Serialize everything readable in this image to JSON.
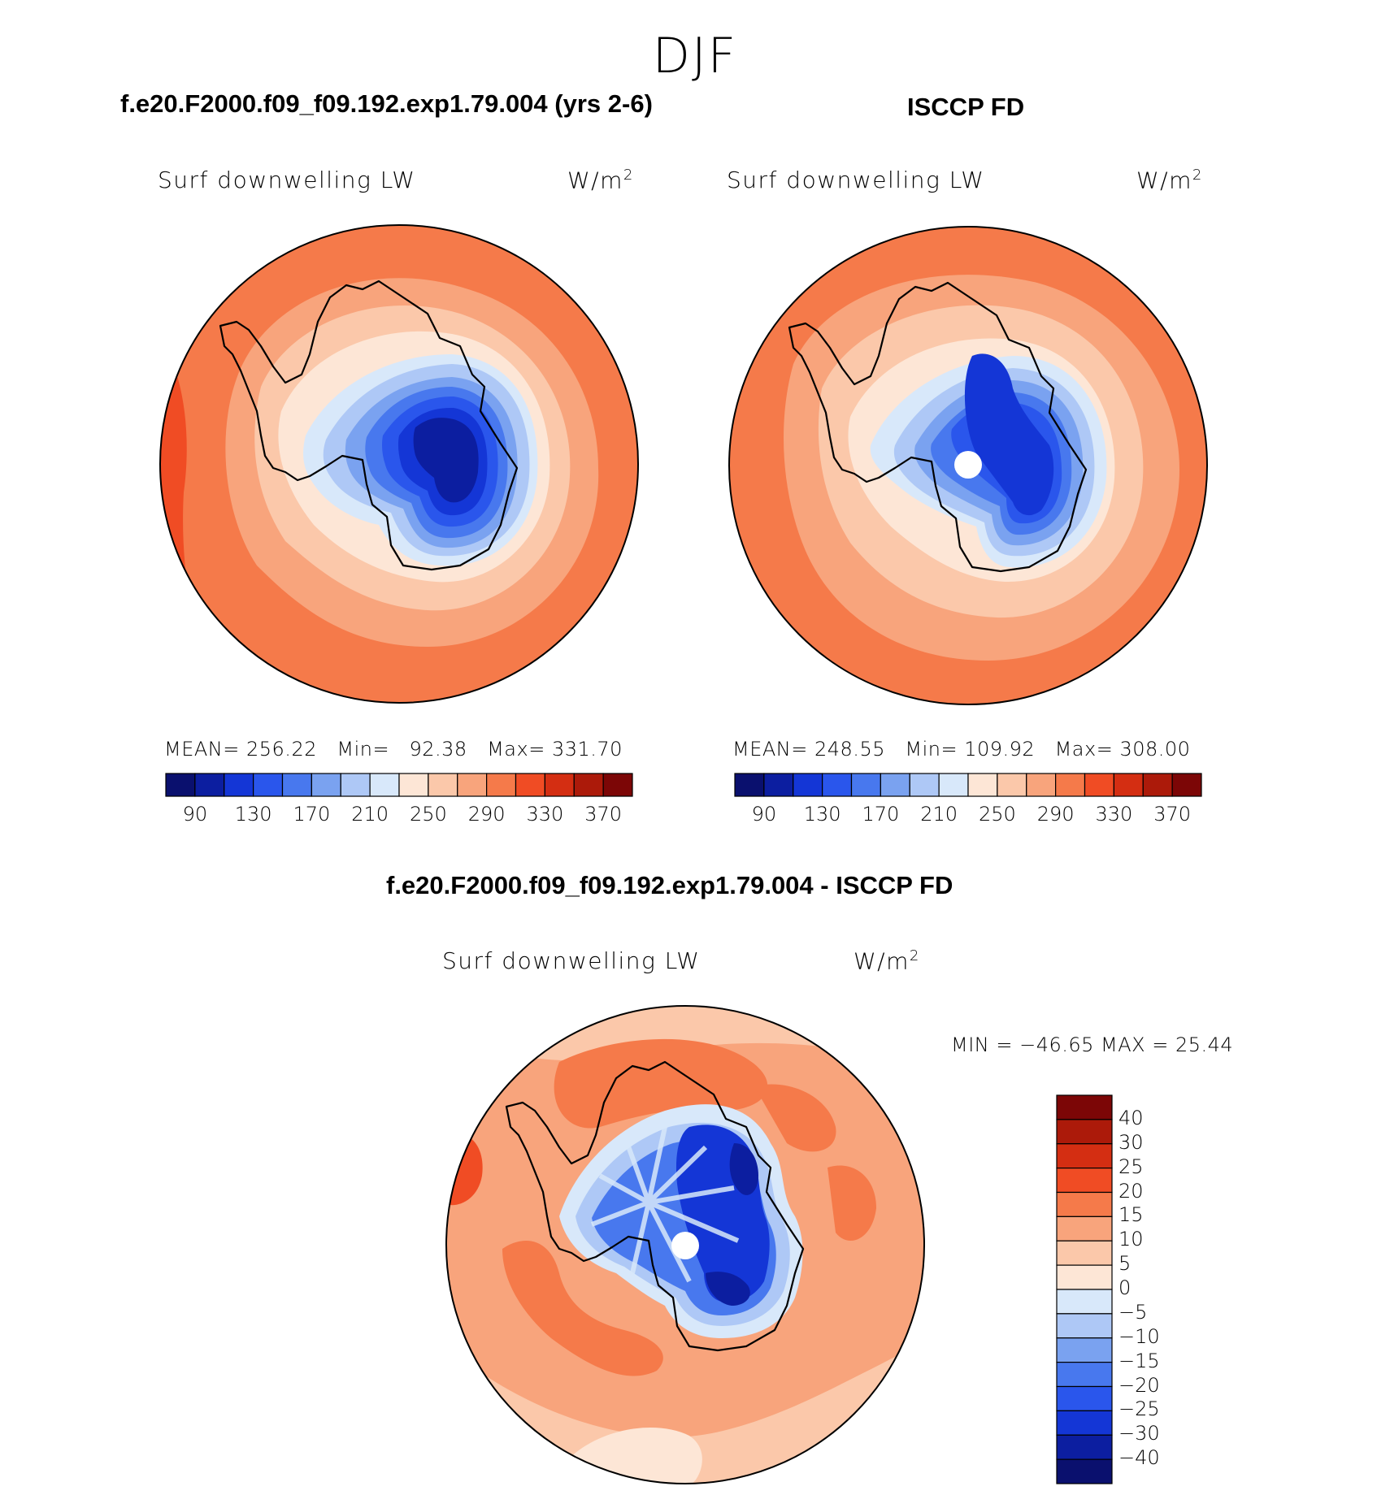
{
  "figure": {
    "season": "DJF",
    "diff_title": "f.e20.F2000.f09_f09.192.exp1.79.004 - ISCCP FD"
  },
  "panels": [
    {
      "title": "f.e20.F2000.f09_f09.192.exp1.79.004 (yrs 2-6)",
      "variable": "Surf downwelling LW",
      "units": "W/m",
      "units_exp": "2",
      "mean_label": "MEAN=",
      "mean": "256.22",
      "min_label": "Min=",
      "min": "92.38",
      "max_label": "Max=",
      "max": "331.70"
    },
    {
      "title": "ISCCP FD",
      "variable": "Surf downwelling LW",
      "units": "W/m",
      "units_exp": "2",
      "mean_label": "MEAN=",
      "mean": "248.55",
      "min_label": "Min=",
      "min": "109.92",
      "max_label": "Max=",
      "max": "308.00"
    }
  ],
  "diff_panel": {
    "variable": "Surf downwelling LW",
    "units": "W/m",
    "units_exp": "2",
    "minmax": "MIN = −46.65 MAX =   25.44"
  },
  "chart_data": [
    {
      "type": "heatmap",
      "title": "f.e20.F2000.f09_f09.192.exp1.79.004 (yrs 2-6)",
      "projection": "south polar stereographic",
      "variable": "Surf downwelling LW",
      "units": "W/m2",
      "mean": 256.22,
      "min": 92.38,
      "max": 331.7,
      "colorbar_levels": [
        90,
        110,
        130,
        150,
        170,
        190,
        210,
        230,
        250,
        270,
        290,
        310,
        330,
        350,
        370
      ],
      "colorbar_tick_labels": [
        "90",
        "130",
        "170",
        "210",
        "250",
        "290",
        "330",
        "370"
      ]
    },
    {
      "type": "heatmap",
      "title": "ISCCP FD",
      "projection": "south polar stereographic",
      "variable": "Surf downwelling LW",
      "units": "W/m2",
      "mean": 248.55,
      "min": 109.92,
      "max": 308.0,
      "colorbar_levels": [
        90,
        110,
        130,
        150,
        170,
        190,
        210,
        230,
        250,
        270,
        290,
        310,
        330,
        350,
        370
      ],
      "colorbar_tick_labels": [
        "90",
        "130",
        "170",
        "210",
        "250",
        "290",
        "330",
        "370"
      ]
    },
    {
      "type": "heatmap",
      "title": "f.e20.F2000.f09_f09.192.exp1.79.004 - ISCCP FD",
      "projection": "south polar stereographic",
      "variable": "Surf downwelling LW",
      "units": "W/m2",
      "min": -46.65,
      "max": 25.44,
      "colorbar_levels": [
        -40,
        -30,
        -25,
        -20,
        -15,
        -10,
        -5,
        0,
        5,
        10,
        15,
        20,
        25,
        30,
        40
      ],
      "colorbar_tick_labels": [
        "40",
        "30",
        "25",
        "20",
        "15",
        "10",
        "5",
        "0",
        "−5",
        "−10",
        "−15",
        "−20",
        "−25",
        "−30",
        "−40"
      ]
    }
  ],
  "colors": {
    "palette": [
      "#0a106e",
      "#0c1ea0",
      "#1436d6",
      "#2a56ec",
      "#4878ee",
      "#7aa2f0",
      "#aec8f6",
      "#d8e8fa",
      "#fde6d6",
      "#fbc8aa",
      "#f8a47c",
      "#f57a4a",
      "#f04c24",
      "#d42e12",
      "#ac1a0a",
      "#7c0606"
    ],
    "coast": "#000000"
  }
}
